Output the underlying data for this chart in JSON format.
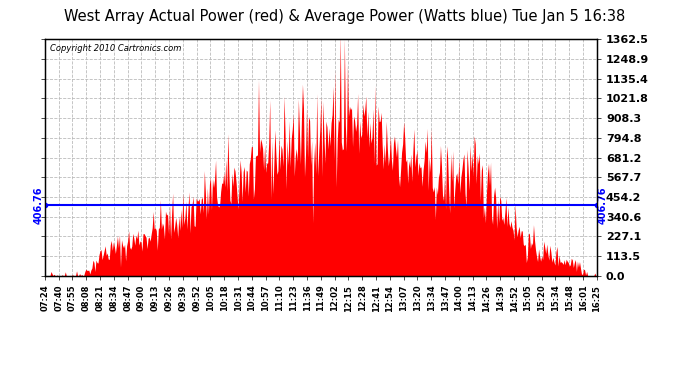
{
  "title": "West Array Actual Power (red) & Average Power (Watts blue) Tue Jan 5 16:38",
  "copyright": "Copyright 2010 Cartronics.com",
  "average_power": 406.76,
  "ylim": [
    0.0,
    1362.5
  ],
  "yticks": [
    0.0,
    113.5,
    227.1,
    340.6,
    454.2,
    567.7,
    681.2,
    794.8,
    908.3,
    1021.8,
    1135.4,
    1248.9,
    1362.5
  ],
  "background_color": "#ffffff",
  "plot_bg_color": "#ffffff",
  "grid_color": "#bbbbbb",
  "fill_color": "#ff0000",
  "line_color": "#0000ff",
  "avg_label_color": "#0000ff",
  "title_fontsize": 11,
  "x_tick_labels": [
    "07:24",
    "07:40",
    "07:55",
    "08:08",
    "08:21",
    "08:34",
    "08:47",
    "09:00",
    "09:13",
    "09:26",
    "09:39",
    "09:52",
    "10:05",
    "10:18",
    "10:31",
    "10:44",
    "10:57",
    "11:10",
    "11:23",
    "11:36",
    "11:49",
    "12:02",
    "12:15",
    "12:28",
    "12:41",
    "12:54",
    "13:07",
    "13:20",
    "13:34",
    "13:47",
    "14:00",
    "14:13",
    "14:26",
    "14:39",
    "14:52",
    "15:05",
    "15:20",
    "15:34",
    "15:48",
    "16:01",
    "16:25"
  ],
  "num_points": 541
}
